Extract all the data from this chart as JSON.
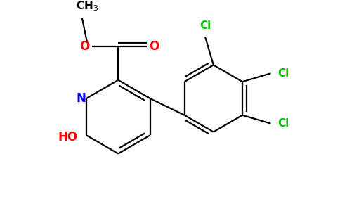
{
  "background_color": "#ffffff",
  "bond_color": "#000000",
  "n_color": "#0000ff",
  "o_color": "#ff0000",
  "cl_color": "#00cc00",
  "line_width": 1.6,
  "figsize": [
    4.84,
    3.0
  ],
  "dpi": 100,
  "xlim": [
    0.0,
    9.5
  ],
  "ylim": [
    0.0,
    6.0
  ]
}
